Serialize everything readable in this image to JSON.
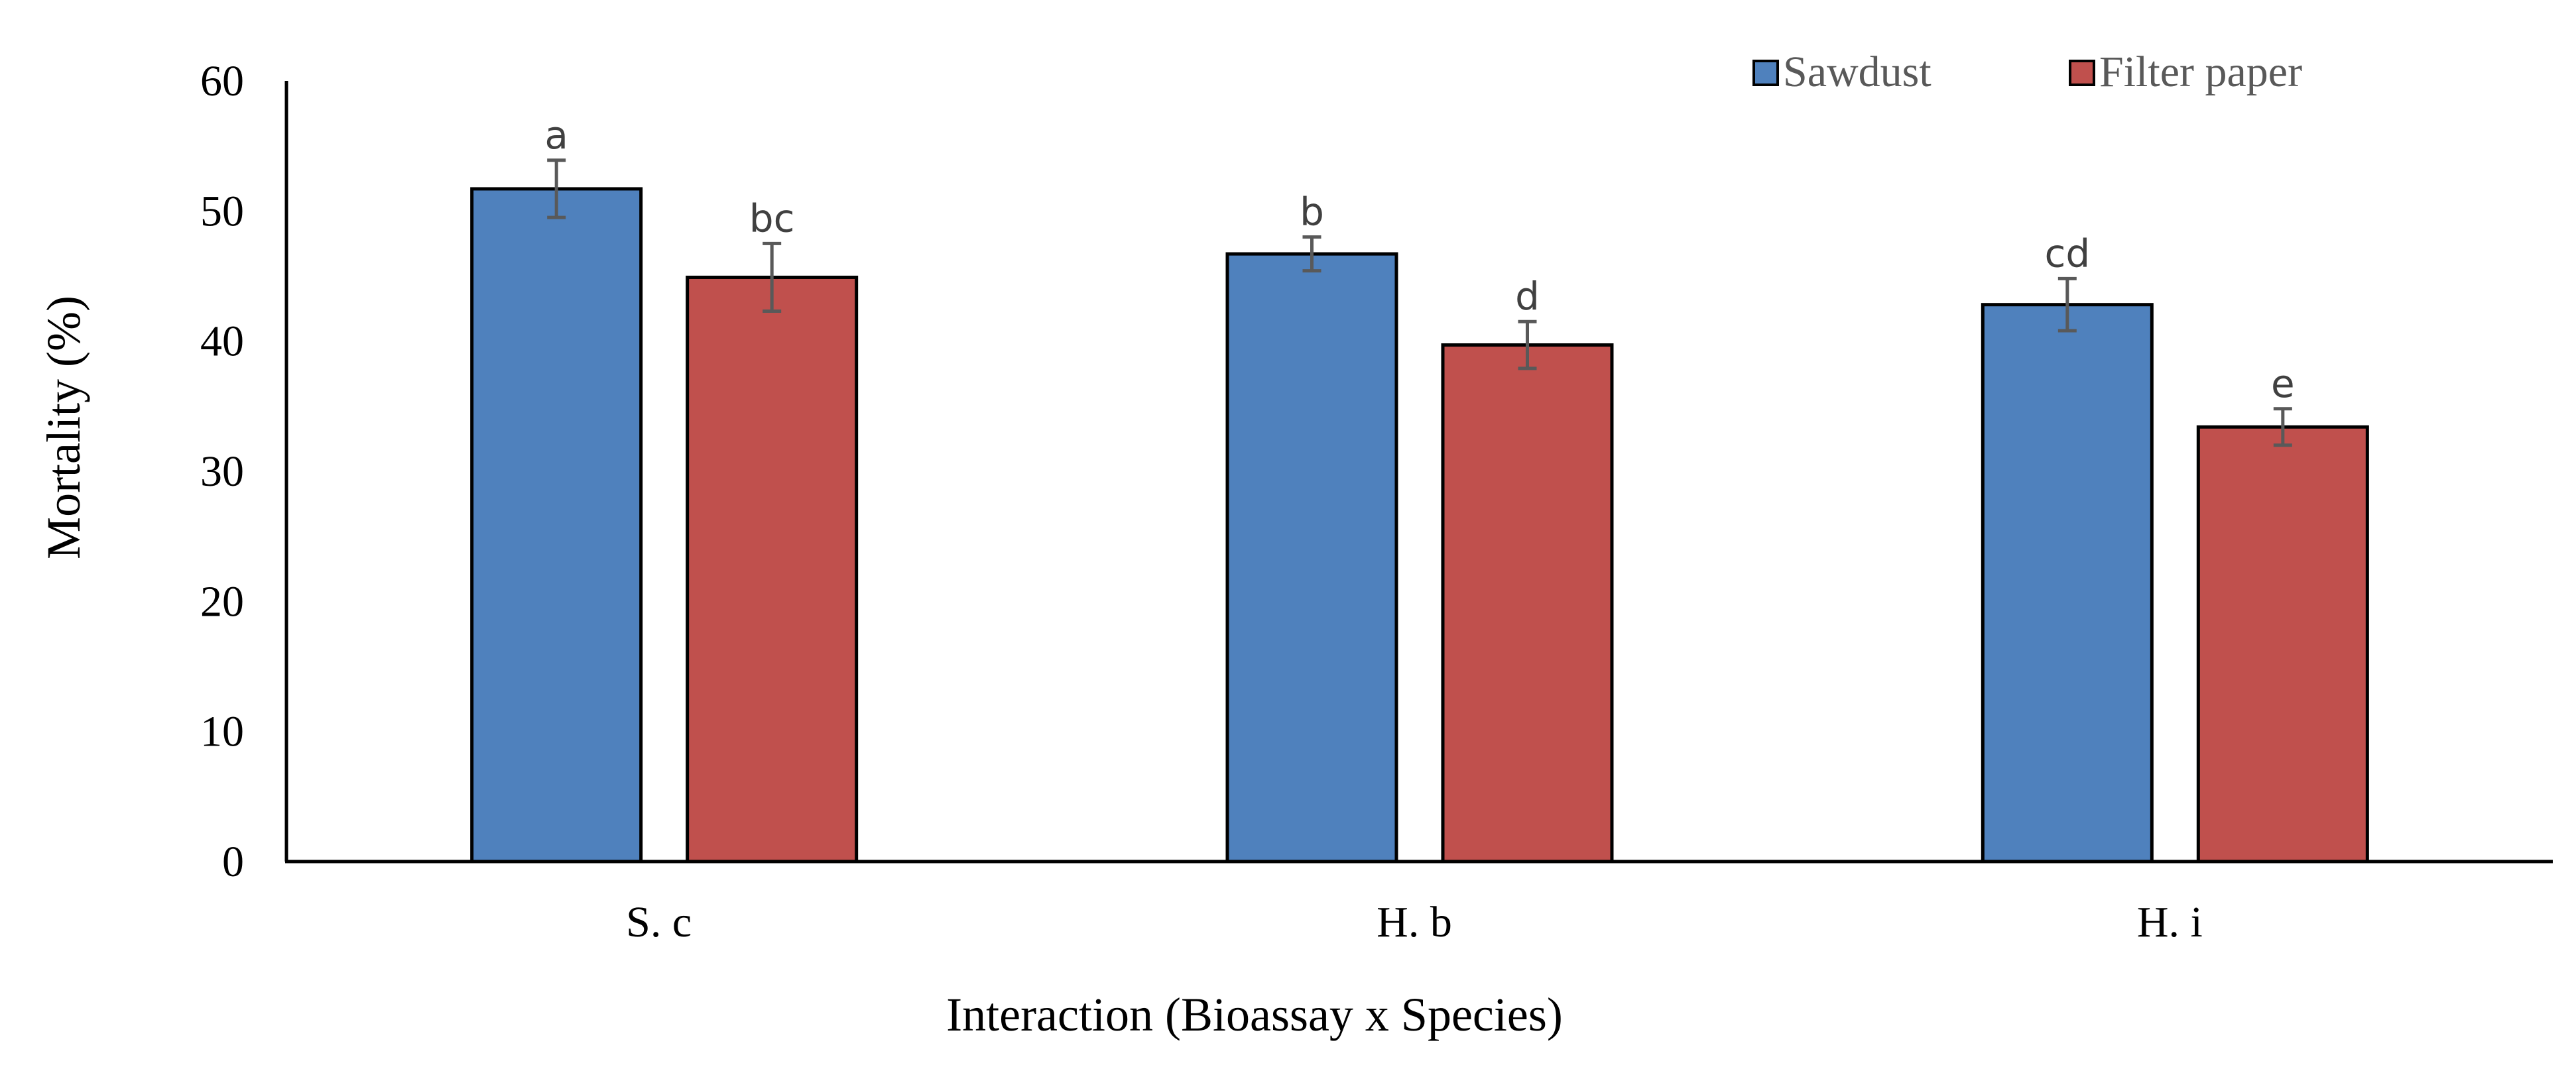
{
  "chart_data": {
    "type": "bar",
    "title": "",
    "xlabel": "Interaction (Bioassay x Species)",
    "ylabel": "Mortality (%)",
    "categories": [
      "S. c",
      "H. b",
      "H. i"
    ],
    "ylim": [
      0,
      60
    ],
    "yticks": [
      0,
      10,
      20,
      30,
      40,
      50,
      60
    ],
    "grid": false,
    "legend_position": "top-right",
    "series": [
      {
        "name": "Sawdust",
        "color": "#4f81bd",
        "values": [
          51.7,
          46.7,
          42.8
        ],
        "errors": [
          2.2,
          1.3,
          2.0
        ],
        "labels": [
          "a",
          "b",
          "cd"
        ]
      },
      {
        "name": "Filter paper",
        "color": "#c0504d",
        "values": [
          44.9,
          39.7,
          33.4
        ],
        "errors": [
          2.6,
          1.8,
          1.4
        ],
        "labels": [
          "bc",
          "d",
          "e"
        ]
      }
    ]
  }
}
